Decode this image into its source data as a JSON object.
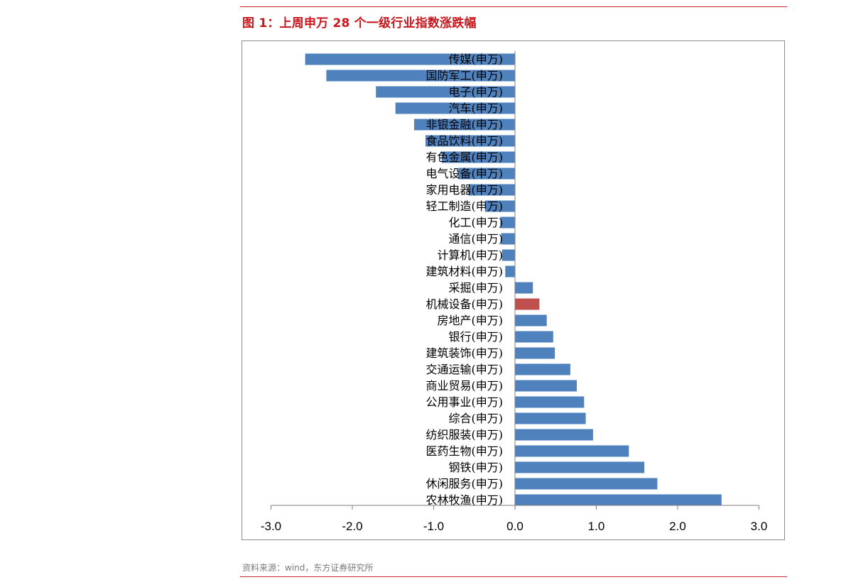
{
  "page": {
    "title": "图 1：上周申万 28 个一级行业指数涨跌幅",
    "source": "资料来源：wind，东方证券研究所"
  },
  "colors": {
    "title": "#c8161d",
    "rule": "#c8282d",
    "bar_default": "#4f81bd",
    "bar_highlight": "#c0504d",
    "axis": "#7f7f7f"
  },
  "chart_data": {
    "type": "bar",
    "orientation": "horizontal",
    "title": "",
    "xlabel": "",
    "ylabel": "",
    "xlim": [
      -3.0,
      3.0
    ],
    "x_ticks": [
      -3.0,
      -2.0,
      -1.0,
      0.0,
      1.0,
      2.0,
      3.0
    ],
    "x_tick_labels": [
      "-3.0",
      "-2.0",
      "-1.0",
      "0.0",
      "1.0",
      "2.0",
      "3.0"
    ],
    "grid": false,
    "legend": "none",
    "categories": [
      "传媒(申万)",
      "国防军工(申万)",
      "电子(申万)",
      "汽车(申万)",
      "非银金融(申万)",
      "食品饮料(申万)",
      "有色金属(申万)",
      "电气设备(申万)",
      "家用电器(申万)",
      "轻工制造(申万)",
      "化工(申万)",
      "通信(申万)",
      "计算机(申万)",
      "建筑材料(申万)",
      "采掘(申万)",
      "机械设备(申万)",
      "房地产(申万)",
      "银行(申万)",
      "建筑装饰(申万)",
      "交通运输(申万)",
      "商业贸易(申万)",
      "公用事业(申万)",
      "综合(申万)",
      "纺织服装(申万)",
      "医药生物(申万)",
      "钢铁(申万)",
      "休闲服务(申万)",
      "农林牧渔(申万)"
    ],
    "values": [
      -2.58,
      -2.32,
      -1.71,
      -1.47,
      -1.24,
      -1.1,
      -0.9,
      -0.7,
      -0.57,
      -0.37,
      -0.18,
      -0.17,
      -0.16,
      -0.12,
      0.22,
      0.3,
      0.39,
      0.47,
      0.49,
      0.68,
      0.76,
      0.85,
      0.87,
      0.96,
      1.4,
      1.59,
      1.75,
      2.54
    ],
    "highlight_category": "机械设备(申万)"
  }
}
